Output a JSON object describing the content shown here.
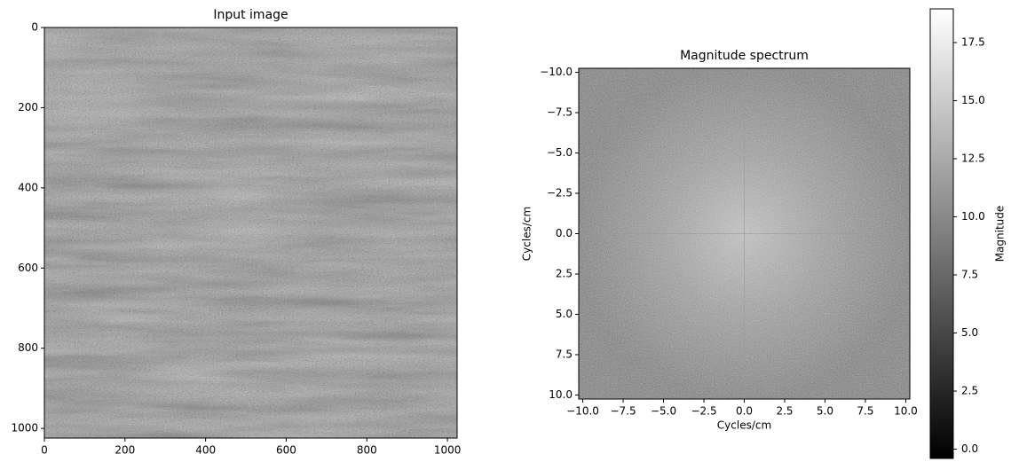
{
  "chart_data": [
    {
      "type": "image",
      "title": "Input image",
      "xlim": [
        0,
        1024
      ],
      "ylim": [
        1024,
        0
      ],
      "xticks": [
        0,
        200,
        400,
        600,
        800,
        1000
      ],
      "yticks": [
        0,
        200,
        400,
        600,
        800,
        1000
      ]
    },
    {
      "type": "image",
      "title": "Magnitude spectrum",
      "xlabel": "Cycles/cm",
      "ylabel": "Cycles/cm",
      "xlim": [
        -10.25,
        10.25
      ],
      "ylim": [
        10.25,
        -10.25
      ],
      "xticks": [
        {
          "value": -10,
          "label": "−10.0"
        },
        {
          "value": -7.5,
          "label": "−7.5"
        },
        {
          "value": -5,
          "label": "−5.0"
        },
        {
          "value": -2.5,
          "label": "−2.5"
        },
        {
          "value": 0,
          "label": "0.0"
        },
        2.5,
        {
          "value": 5,
          "label": "5.0"
        },
        7.5,
        {
          "value": 10,
          "label": "10.0"
        }
      ],
      "yticks": [
        {
          "value": -10,
          "label": "−10.0"
        },
        {
          "value": -7.5,
          "label": "−7.5"
        },
        {
          "value": -5,
          "label": "−5.0"
        },
        {
          "value": -2.5,
          "label": "−2.5"
        },
        {
          "value": 0,
          "label": "0.0"
        },
        2.5,
        {
          "value": 5,
          "label": "5.0"
        },
        7.5,
        {
          "value": 10,
          "label": "10.0"
        }
      ],
      "colorbar": {
        "label": "Magnitude",
        "lim": [
          -0.4,
          18.95
        ],
        "ticks": [
          {
            "value": 0,
            "label": "0.0"
          },
          2.5,
          {
            "value": 5,
            "label": "5.0"
          },
          7.5,
          {
            "value": 10,
            "label": "10.0"
          },
          12.5,
          {
            "value": 15,
            "label": "15.0"
          },
          17.5
        ]
      }
    }
  ]
}
